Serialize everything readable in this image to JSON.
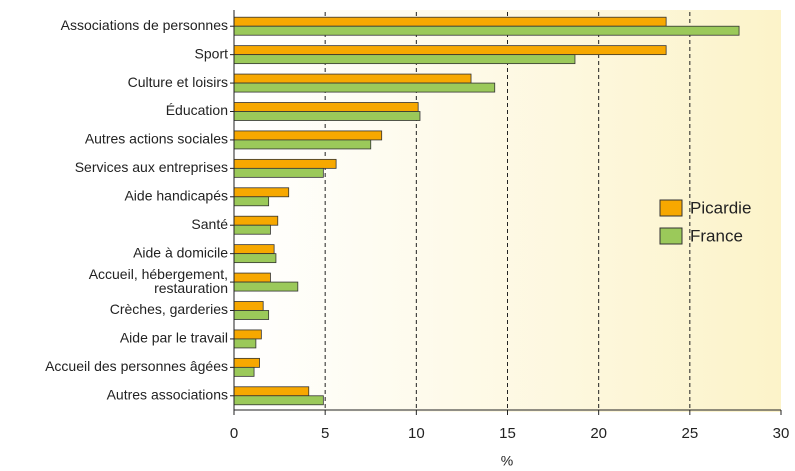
{
  "chart_data": {
    "type": "hbar",
    "categories": [
      "Associations de personnes",
      "Sport",
      "Culture et loisirs",
      "Éducation",
      "Autres actions sociales",
      "Services aux entreprises",
      "Aide handicapés",
      "Santé",
      "Aide à domicile",
      "Accueil, hébergement,\nrestauration",
      "Crèches, garderies",
      "Aide par le travail",
      "Accueil des personnes âgées",
      "Autres associations"
    ],
    "series": [
      {
        "name": "Picardie",
        "color": "#f7a800",
        "values": [
          23.7,
          23.7,
          13.0,
          10.1,
          8.1,
          5.6,
          3.0,
          2.4,
          2.2,
          2.0,
          1.6,
          1.5,
          1.4,
          4.1
        ]
      },
      {
        "name": "France",
        "color": "#9bc95a",
        "values": [
          27.7,
          18.7,
          14.3,
          10.2,
          7.5,
          4.9,
          1.9,
          2.0,
          2.3,
          3.5,
          1.9,
          1.2,
          1.1,
          4.9
        ]
      }
    ],
    "xlabel": "%",
    "xlim": [
      0,
      30
    ],
    "xticks": [
      0,
      5,
      10,
      15,
      20,
      25,
      30
    ],
    "grid": true,
    "legend": "right"
  }
}
